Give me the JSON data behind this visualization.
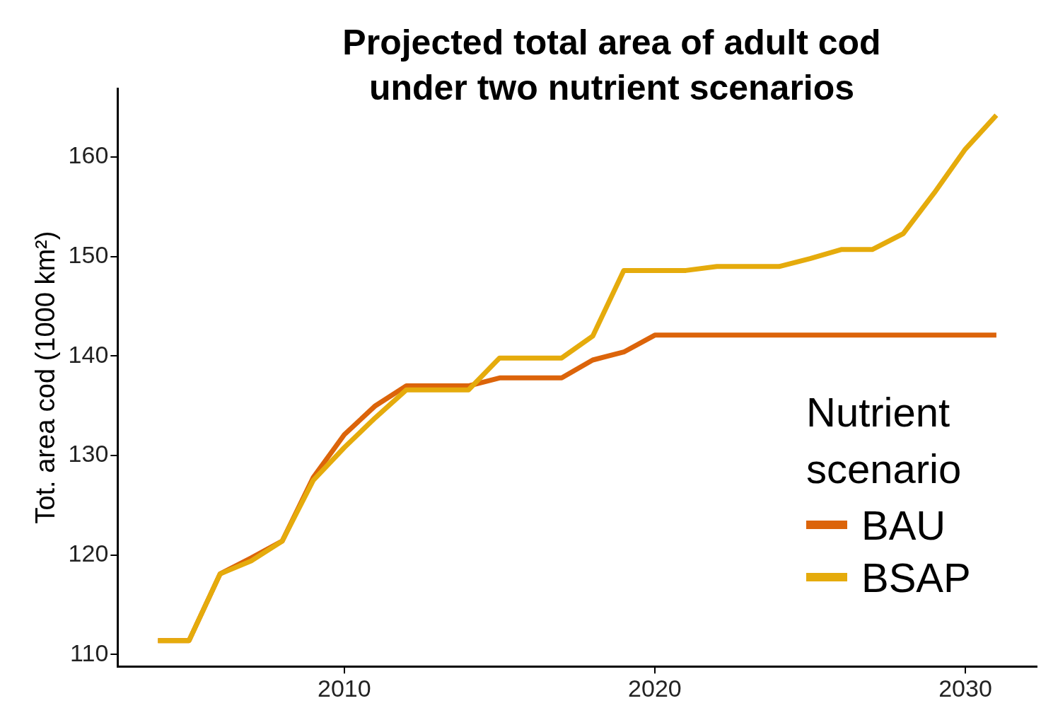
{
  "chart_data": {
    "type": "line",
    "title": "Projected total area of adult cod under two nutrient scenarios",
    "ylabel": "Tot. area cod (1000 km²)",
    "legend_title": "Nutrient scenario",
    "legend": "bottom right",
    "grid": false,
    "marker": "none",
    "line_style": "solid",
    "x": [
      2004,
      2005,
      2006,
      2007,
      2008,
      2009,
      2010,
      2011,
      2012,
      2013,
      2014,
      2015,
      2016,
      2017,
      2018,
      2019,
      2020,
      2021,
      2022,
      2023,
      2024,
      2025,
      2026,
      2027,
      2028,
      2029,
      2030,
      2031
    ],
    "xlim": [
      2002.7,
      2032.3
    ],
    "xticks": [
      2010,
      2020,
      2030
    ],
    "ylim": [
      108.8,
      166.9
    ],
    "yticks": [
      110,
      120,
      130,
      140,
      150,
      160
    ],
    "series": [
      {
        "name": "BAU",
        "color": "#dc640a",
        "values": [
          111.4,
          111.4,
          118.1,
          119.7,
          121.4,
          127.8,
          132.1,
          135.0,
          137.0,
          137.0,
          137.0,
          137.8,
          137.8,
          137.8,
          139.6,
          140.4,
          142.1,
          142.1,
          142.1,
          142.1,
          142.1,
          142.1,
          142.1,
          142.1,
          142.1,
          142.1,
          142.1,
          142.1
        ]
      },
      {
        "name": "BSAP",
        "color": "#e5ab0c",
        "values": [
          111.4,
          111.4,
          118.1,
          119.4,
          121.4,
          127.5,
          130.8,
          133.8,
          136.6,
          136.6,
          136.6,
          139.8,
          139.8,
          139.8,
          142.0,
          148.6,
          148.6,
          148.6,
          149.0,
          149.0,
          149.0,
          149.8,
          150.7,
          150.7,
          152.3,
          156.4,
          160.8,
          164.2
        ]
      }
    ]
  }
}
